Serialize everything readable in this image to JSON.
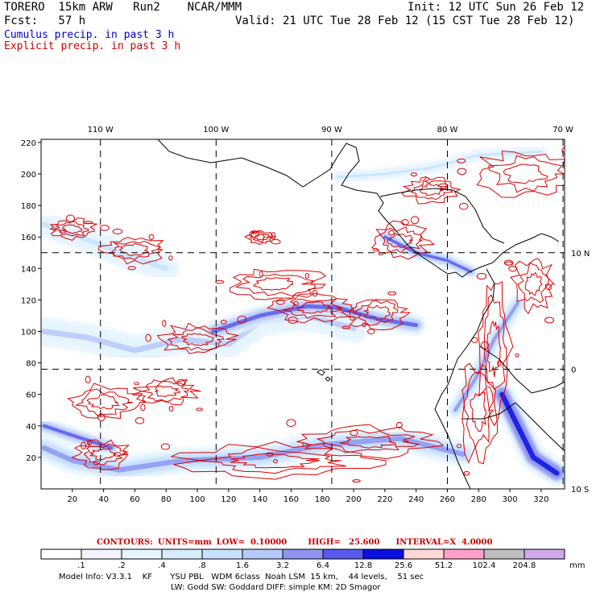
{
  "header": {
    "model": "TORERO  15km ARW   Run2    NCAR/MMM",
    "forecast": "Fcst:   57 h",
    "init": "Init: 12 UTC Sun 26 Feb 12",
    "valid": "Valid: 21 UTC Tue 28 Feb 12 (15 CST Tue 28 Feb 12)",
    "legend_cumulus": "Cumulus precip. in past 3 h",
    "legend_explicit": "Explicit precip. in past 3 h"
  },
  "colors": {
    "cumulus_text": "#0000cc",
    "explicit_text": "#cc0000",
    "contour": "#dd0000",
    "coast": "#000000"
  },
  "chart_data": {
    "type": "heatmap",
    "title": "Cumulus precip. in past 3 h / Explicit precip. in past 3 h",
    "x_ticks": [
      20,
      40,
      60,
      80,
      100,
      120,
      140,
      160,
      180,
      200,
      220,
      240,
      260,
      280,
      300,
      320
    ],
    "y_ticks": [
      20,
      40,
      60,
      80,
      100,
      120,
      140,
      160,
      180,
      200,
      220
    ],
    "xlim": [
      0,
      335
    ],
    "ylim": [
      0,
      222
    ],
    "lon_labels": [
      {
        "label": "110 W",
        "x": 38
      },
      {
        "label": "100 W",
        "x": 112
      },
      {
        "label": "90 W",
        "x": 186
      },
      {
        "label": "80 W",
        "x": 260
      },
      {
        "label": "70 W",
        "x": 334
      }
    ],
    "lat_labels": [
      {
        "label": "10 N",
        "y": 150
      },
      {
        "label": "0",
        "y": 76
      },
      {
        "label": "10 S",
        "y": 0
      }
    ],
    "cumulus_bands": [
      {
        "x": [
          2,
          30,
          60,
          90,
          120,
          140,
          170,
          200
        ],
        "y": [
          100,
          96,
          88,
          95,
          92,
          106,
          110,
          102
        ],
        "intensity": 0.45,
        "thickness": 20
      },
      {
        "x": [
          2,
          20,
          50,
          90,
          140,
          180,
          230,
          270
        ],
        "y": [
          26,
          18,
          12,
          18,
          20,
          28,
          32,
          22
        ],
        "intensity": 0.55,
        "thickness": 18
      },
      {
        "x": [
          2,
          20,
          45
        ],
        "y": [
          40,
          34,
          26
        ],
        "intensity": 0.8,
        "thickness": 12
      },
      {
        "x": [
          110,
          140,
          170,
          190,
          215,
          240
        ],
        "y": [
          100,
          110,
          116,
          115,
          108,
          104
        ],
        "intensity": 0.7,
        "thickness": 14
      },
      {
        "x": [
          2,
          25,
          55,
          80
        ],
        "y": [
          168,
          160,
          148,
          140
        ],
        "intensity": 0.2,
        "thickness": 18
      },
      {
        "x": [
          220,
          240,
          260,
          275
        ],
        "y": [
          160,
          150,
          145,
          138
        ],
        "intensity": 0.75,
        "thickness": 10
      },
      {
        "x": [
          265,
          278,
          290,
          305
        ],
        "y": [
          50,
          70,
          95,
          118
        ],
        "intensity": 0.6,
        "thickness": 12
      },
      {
        "x": [
          295,
          305,
          315,
          330
        ],
        "y": [
          60,
          40,
          20,
          10
        ],
        "intensity": 0.9,
        "thickness": 18
      },
      {
        "x": [
          190,
          220,
          250,
          280,
          320
        ],
        "y": [
          198,
          200,
          204,
          212,
          214
        ],
        "intensity": 0.25,
        "thickness": 8
      }
    ],
    "explicit_contours": [
      {
        "cx": 20,
        "cy": 165,
        "rx": 14,
        "ry": 6
      },
      {
        "cx": 60,
        "cy": 152,
        "rx": 20,
        "ry": 8
      },
      {
        "cx": 140,
        "cy": 160,
        "rx": 8,
        "ry": 4
      },
      {
        "cx": 150,
        "cy": 130,
        "rx": 30,
        "ry": 10
      },
      {
        "cx": 175,
        "cy": 115,
        "rx": 25,
        "ry": 8
      },
      {
        "cx": 215,
        "cy": 112,
        "rx": 18,
        "ry": 10
      },
      {
        "cx": 100,
        "cy": 95,
        "rx": 22,
        "ry": 9
      },
      {
        "cx": 40,
        "cy": 55,
        "rx": 22,
        "ry": 10
      },
      {
        "cx": 80,
        "cy": 62,
        "rx": 18,
        "ry": 8
      },
      {
        "cx": 150,
        "cy": 18,
        "rx": 60,
        "ry": 10
      },
      {
        "cx": 210,
        "cy": 30,
        "rx": 40,
        "ry": 9
      },
      {
        "cx": 40,
        "cy": 22,
        "rx": 18,
        "ry": 8
      },
      {
        "cx": 290,
        "cy": 90,
        "rx": 10,
        "ry": 40
      },
      {
        "cx": 310,
        "cy": 200,
        "rx": 30,
        "ry": 14
      },
      {
        "cx": 250,
        "cy": 190,
        "rx": 16,
        "ry": 8
      },
      {
        "cx": 230,
        "cy": 158,
        "rx": 18,
        "ry": 10
      },
      {
        "cx": 280,
        "cy": 50,
        "rx": 12,
        "ry": 30
      },
      {
        "cx": 315,
        "cy": 130,
        "rx": 12,
        "ry": 16
      }
    ],
    "color_scale": {
      "labels": [
        ".1",
        ".2",
        ".4",
        ".8",
        "1.6",
        "3.2",
        "6.4",
        "12.8",
        "25.6",
        "51.2",
        "102.4",
        "204.8"
      ],
      "colors": [
        "#ffffff",
        "#f4f4ff",
        "#e6f4ff",
        "#d8ecff",
        "#c8e0ff",
        "#b8c8f8",
        "#8e94f0",
        "#5a5aec",
        "#0a10e0",
        "#ffd8d8",
        "#ffa0c8",
        "#bebebe",
        "#d0a8ec"
      ],
      "units": "mm"
    }
  },
  "contour_info": {
    "contours": "CONTOURS:",
    "units": "UNITS=mm",
    "low": "LOW=  0.10000",
    "high": "HIGH=   25.600",
    "interval": "INTERVAL=X  4.0000"
  },
  "footer": {
    "line1": "Model Info: V3.3.1    KF       YSU PBL   WDM 6class  Noah LSM  15 km,    44 levels,    51 sec",
    "line2": "LW: Godd SW: Goddard DIFF: simple KM: 2D Smagor"
  }
}
